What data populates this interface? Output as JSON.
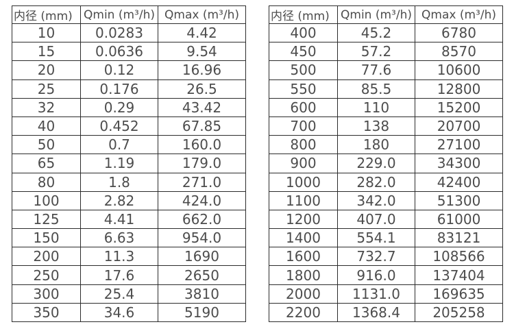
{
  "page": {
    "background_color": "#ffffff",
    "border_color": "#2b2b2b",
    "text_color": "#4c4c4c"
  },
  "tables": [
    {
      "name": "flow-table-small-diameters",
      "headers": [
        "内径 (mm)",
        "Qmin (m³/h)",
        "Qmax (m³/h)"
      ],
      "rows": [
        [
          "10",
          "0.0283",
          "4.42"
        ],
        [
          "15",
          "0.0636",
          "9.54"
        ],
        [
          "20",
          "0.12",
          "16.96"
        ],
        [
          "25",
          "0.176",
          "26.5"
        ],
        [
          "32",
          "0.29",
          "43.42"
        ],
        [
          "40",
          "0.452",
          "67.85"
        ],
        [
          "50",
          "0.7",
          "160.0"
        ],
        [
          "65",
          "1.19",
          "179.0"
        ],
        [
          "80",
          "1.8",
          "271.0"
        ],
        [
          "100",
          "2.82",
          "424.0"
        ],
        [
          "125",
          "4.41",
          "662.0"
        ],
        [
          "150",
          "6.63",
          "954.0"
        ],
        [
          "200",
          "11.3",
          "1690"
        ],
        [
          "250",
          "17.6",
          "2650"
        ],
        [
          "300",
          "25.4",
          "3810"
        ],
        [
          "350",
          "34.6",
          "5190"
        ]
      ]
    },
    {
      "name": "flow-table-large-diameters",
      "headers": [
        "内径 (mm)",
        "Qmin (m³/h)",
        "Qmax (m³/h)"
      ],
      "rows": [
        [
          "400",
          "45.2",
          "6780"
        ],
        [
          "450",
          "57.2",
          "8570"
        ],
        [
          "500",
          "77.6",
          "10600"
        ],
        [
          "550",
          "85.5",
          "12800"
        ],
        [
          "600",
          "110",
          "15200"
        ],
        [
          "700",
          "138",
          "20700"
        ],
        [
          "800",
          "180",
          "27100"
        ],
        [
          "900",
          "229.0",
          "34300"
        ],
        [
          "1000",
          "282.0",
          "42400"
        ],
        [
          "1100",
          "342.0",
          "51300"
        ],
        [
          "1200",
          "407.0",
          "61000"
        ],
        [
          "1400",
          "554.1",
          "83121"
        ],
        [
          "1600",
          "732.7",
          "108566"
        ],
        [
          "1800",
          "916.0",
          "137404"
        ],
        [
          "2000",
          "1131.0",
          "169635"
        ],
        [
          "2200",
          "1368.4",
          "205258"
        ]
      ]
    }
  ]
}
